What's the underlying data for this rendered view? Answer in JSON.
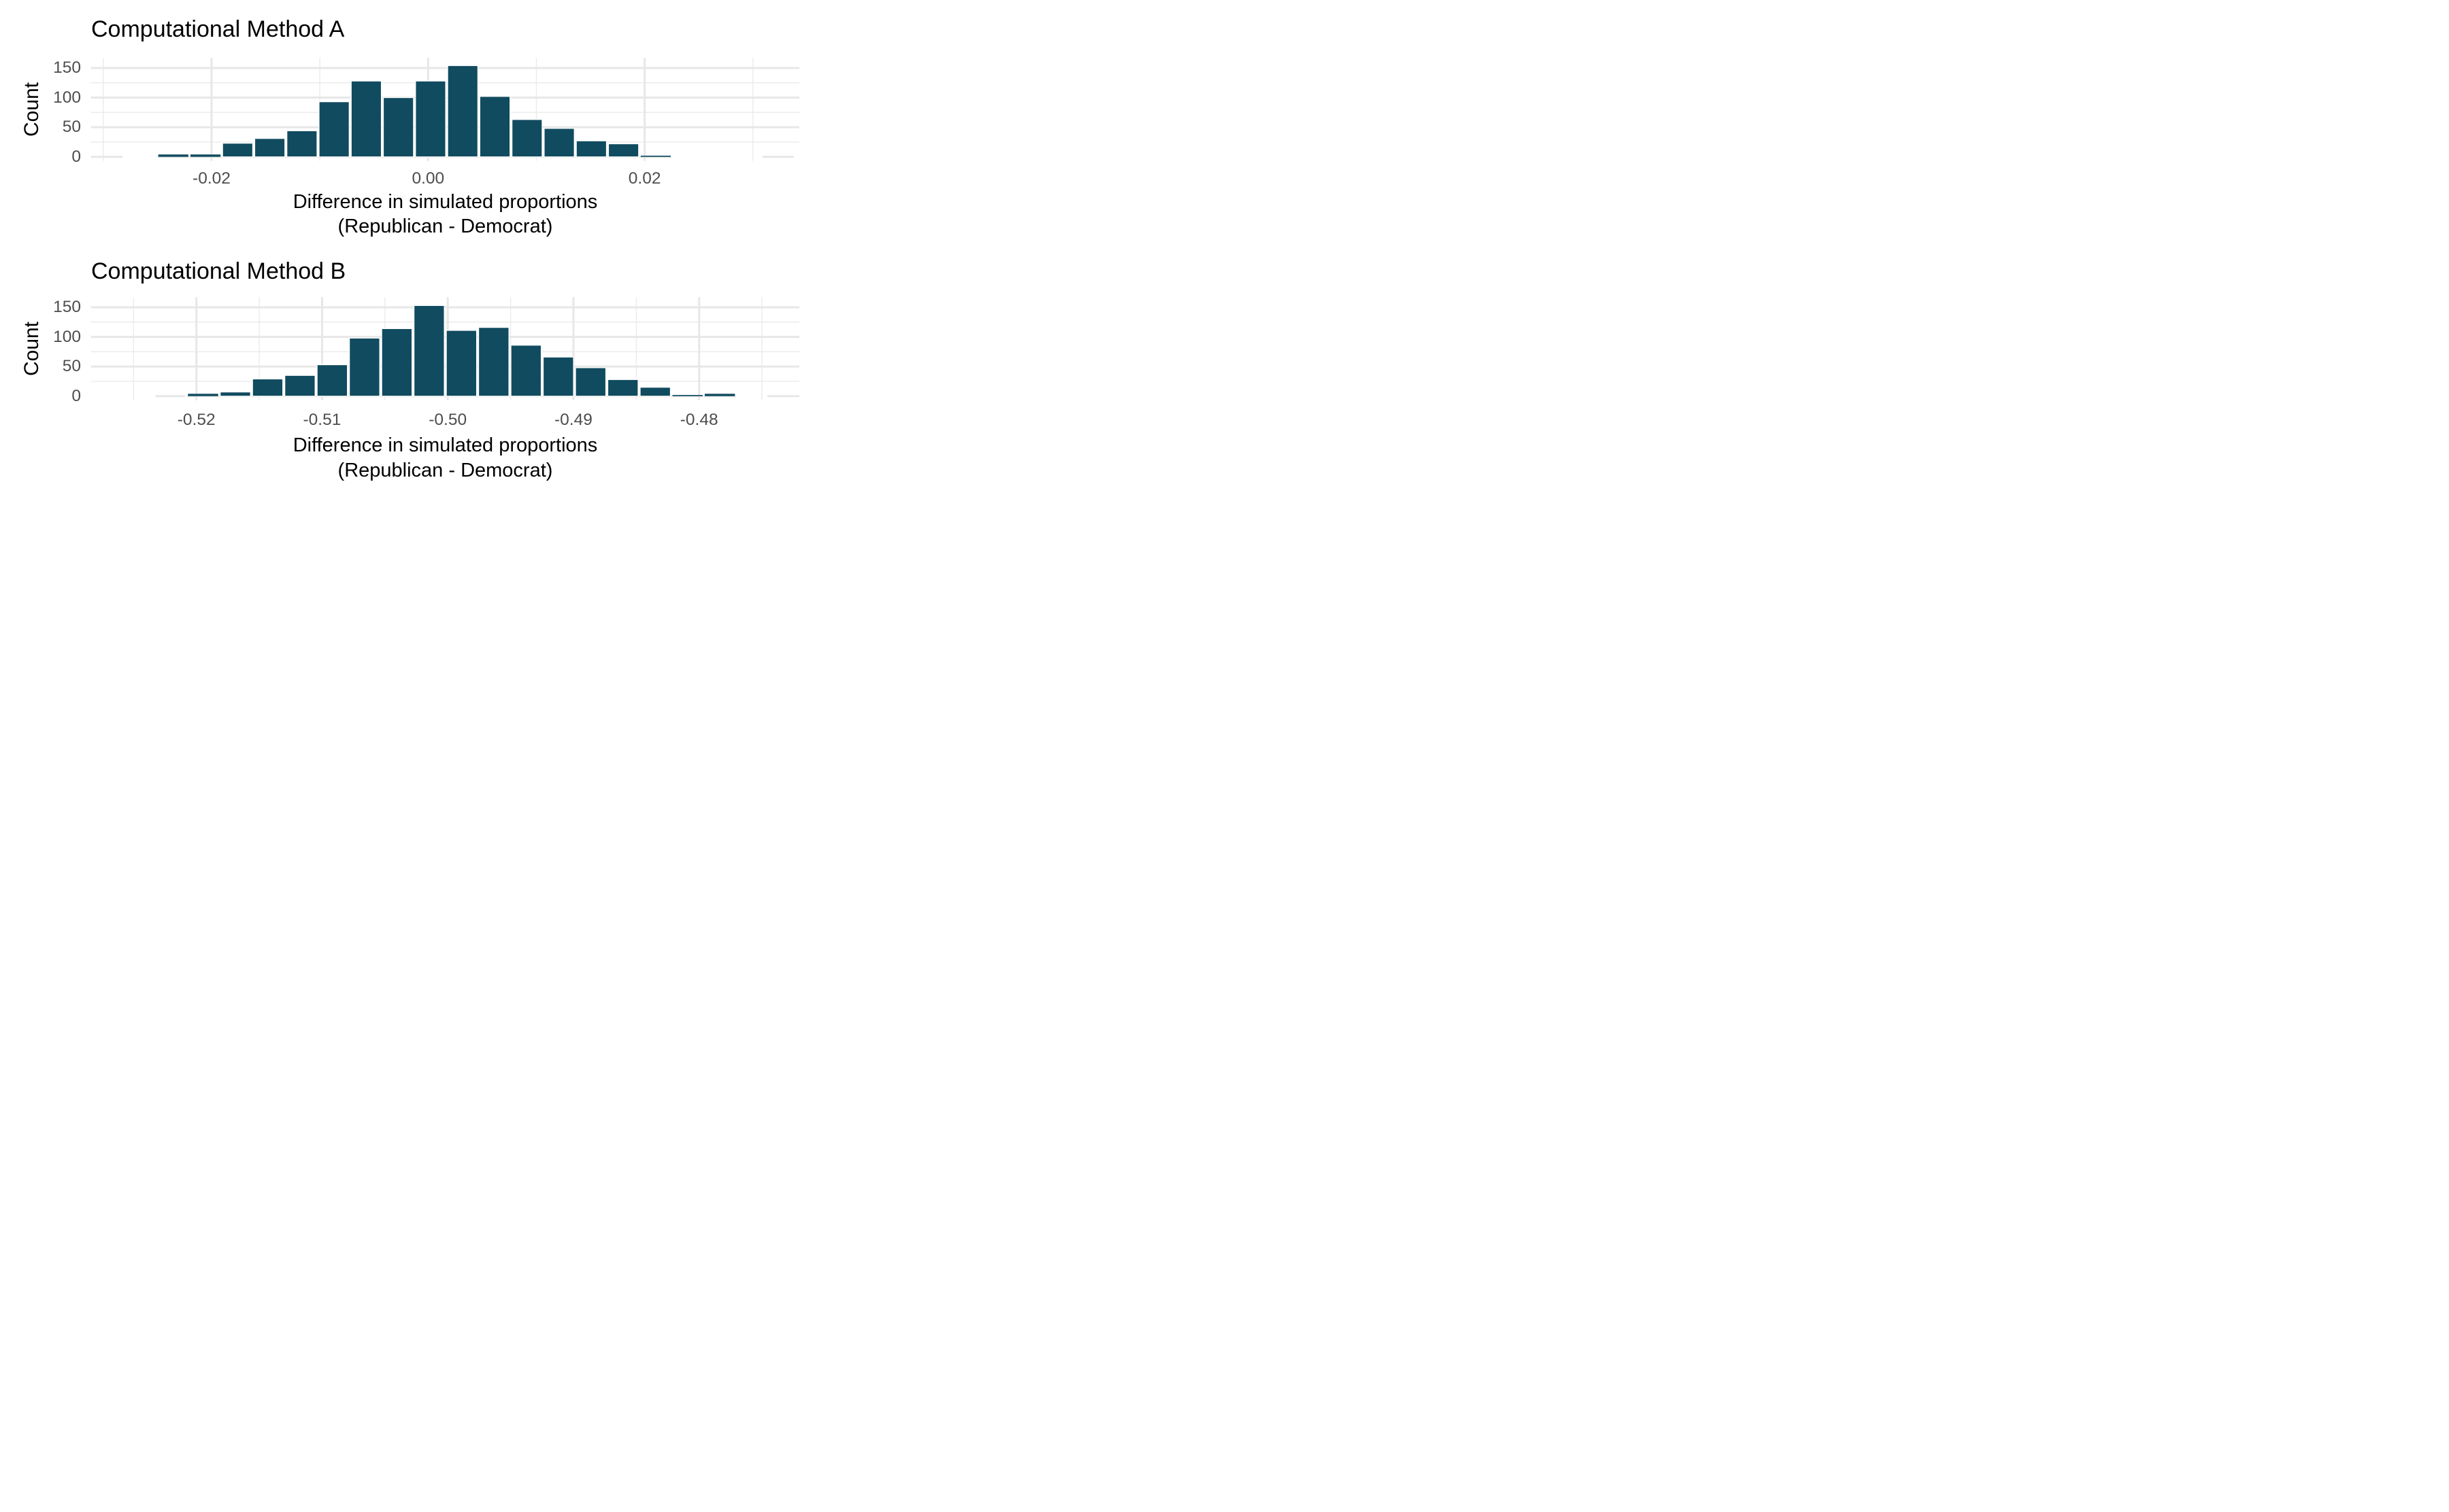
{
  "chart_data": [
    {
      "type": "bar",
      "subtype": "histogram",
      "title": "Computational Method A",
      "ylabel": "Count",
      "xlabel": [
        "Difference in simulated proportions",
        "(Republican - Democrat)"
      ],
      "x_tick_values": [
        -0.02,
        0.0,
        0.02
      ],
      "x_tick_labels": [
        "-0.02",
        "0.00",
        "0.02"
      ],
      "x_minor_gridlines": [
        -0.03,
        -0.01,
        0.01,
        0.03
      ],
      "y_tick_values": [
        0,
        50,
        100,
        150
      ],
      "y_tick_labels": [
        "0",
        "50",
        "100",
        "150"
      ],
      "y_minor_gridlines": [
        25,
        75,
        125
      ],
      "xlim": [
        -0.0311,
        0.0343
      ],
      "ylim": [
        0,
        167
      ],
      "grid": true,
      "legend": false,
      "bin_width": 0.00297,
      "bin_centers": [
        -0.02353,
        -0.02056,
        -0.01759,
        -0.01462,
        -0.01165,
        -0.00868,
        -0.00571,
        -0.00274,
        0.00023,
        0.0032,
        0.00617,
        0.00914,
        0.01211,
        0.01508,
        0.01805,
        0.02102
      ],
      "counts": [
        4,
        4,
        23,
        31,
        44,
        93,
        128,
        100,
        128,
        154,
        102,
        63,
        48,
        27,
        22,
        2
      ]
    },
    {
      "type": "bar",
      "subtype": "histogram",
      "title": "Computational Method B",
      "ylabel": "Count",
      "xlabel": [
        "Difference in simulated proportions",
        "(Republican - Democrat)"
      ],
      "x_tick_values": [
        -0.52,
        -0.51,
        -0.5,
        -0.49,
        -0.48
      ],
      "x_tick_labels": [
        "-0.52",
        "-0.51",
        "-0.50",
        "-0.49",
        "-0.48"
      ],
      "x_minor_gridlines": [
        -0.525,
        -0.515,
        -0.505,
        -0.495,
        -0.485,
        -0.475
      ],
      "y_tick_values": [
        0,
        50,
        100,
        150
      ],
      "y_tick_labels": [
        "0",
        "50",
        "100",
        "150"
      ],
      "y_minor_gridlines": [
        25,
        75,
        125
      ],
      "xlim": [
        -0.5284,
        -0.472
      ],
      "ylim": [
        0,
        167
      ],
      "grid": true,
      "legend": false,
      "bin_width": 0.00257,
      "bin_centers": [
        -0.51947,
        -0.5169,
        -0.51433,
        -0.51176,
        -0.50919,
        -0.50662,
        -0.50405,
        -0.50148,
        -0.49891,
        -0.49634,
        -0.49377,
        -0.4912,
        -0.48863,
        -0.48606,
        -0.48349,
        -0.48092,
        -0.47835
      ],
      "counts": [
        4,
        7,
        29,
        35,
        53,
        98,
        114,
        153,
        111,
        116,
        86,
        66,
        48,
        28,
        15,
        2,
        4
      ]
    }
  ],
  "colors": {
    "bar_fill": "#114B5F",
    "grid_major": "#E7E7E7",
    "grid_minor": "#EBEBEB",
    "tick_label": "#4D4D4D",
    "text": "#000000",
    "background": "#FFFFFF"
  }
}
